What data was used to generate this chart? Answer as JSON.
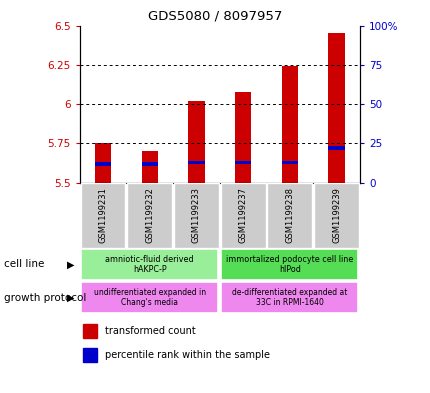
{
  "title": "GDS5080 / 8097957",
  "samples": [
    "GSM1199231",
    "GSM1199232",
    "GSM1199233",
    "GSM1199237",
    "GSM1199238",
    "GSM1199239"
  ],
  "red_values": [
    5.75,
    5.7,
    6.02,
    6.08,
    6.24,
    6.45
  ],
  "blue_values": [
    5.62,
    5.62,
    5.63,
    5.63,
    5.63,
    5.72
  ],
  "y_min": 5.5,
  "y_max": 6.5,
  "y_ticks": [
    5.5,
    5.75,
    6.0,
    6.25,
    6.5
  ],
  "y_tick_labels": [
    "5.5",
    "5.75",
    "6",
    "6.25",
    "6.5"
  ],
  "right_y_ticks": [
    0,
    25,
    50,
    75,
    100
  ],
  "right_y_labels": [
    "0",
    "25",
    "50",
    "75",
    "100%"
  ],
  "grid_lines": [
    5.75,
    6.0,
    6.25
  ],
  "cell_line_labels": [
    "amniotic-fluid derived\nhAKPC-P",
    "immortalized podocyte cell line\nhIPod"
  ],
  "cell_line_color_left": "#99ee99",
  "cell_line_color_right": "#55dd55",
  "growth_protocol_labels": [
    "undifferentiated expanded in\nChang's media",
    "de-differentiated expanded at\n33C in RPMI-1640"
  ],
  "growth_protocol_color": "#ee88ee",
  "bar_width": 0.35,
  "red_color": "#cc0000",
  "blue_color": "#0000cc",
  "left_label_color": "#cc0000",
  "right_label_color": "#0000cc",
  "sample_box_color": "#cccccc",
  "legend_red_label": "transformed count",
  "legend_blue_label": "percentile rank within the sample",
  "cell_line_side_label": "cell line",
  "growth_side_label": "growth protocol"
}
